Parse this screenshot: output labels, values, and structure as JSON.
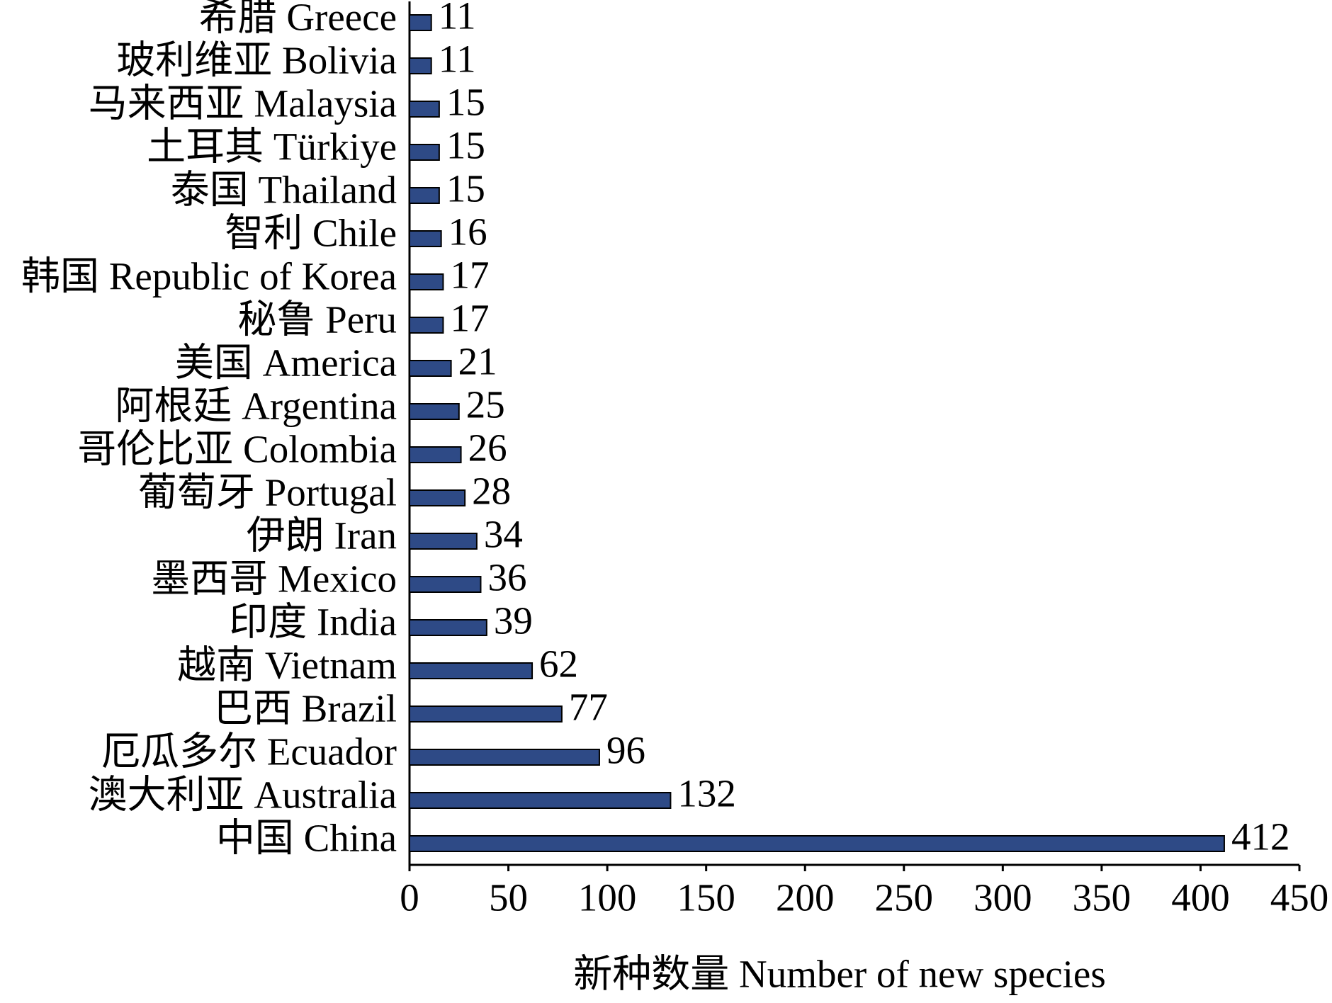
{
  "chart_data": {
    "type": "bar",
    "orientation": "horizontal",
    "x_label": "新种数量 Number of new species",
    "categories": [
      "希腊 Greece",
      "玻利维亚 Bolivia",
      "马来西亚 Malaysia",
      "土耳其 Türkiye",
      "泰国 Thailand",
      "智利 Chile",
      "韩国 Republic of Korea",
      "秘鲁 Peru",
      "美国 America",
      "阿根廷 Argentina",
      "哥伦比亚 Colombia",
      "葡萄牙 Portugal",
      "伊朗 Iran",
      "墨西哥 Mexico",
      "印度 India",
      "越南 Vietnam",
      "巴西 Brazil",
      "厄瓜多尔 Ecuador",
      "澳大利亚 Australia",
      "中国 China"
    ],
    "values": [
      11,
      11,
      15,
      15,
      15,
      16,
      17,
      17,
      21,
      25,
      26,
      28,
      34,
      36,
      39,
      62,
      77,
      96,
      132,
      412
    ],
    "color": "#2e4a86",
    "xlim": [
      0,
      450
    ],
    "xticks": [
      0,
      50,
      100,
      150,
      200,
      250,
      300,
      350,
      400,
      450
    ]
  }
}
